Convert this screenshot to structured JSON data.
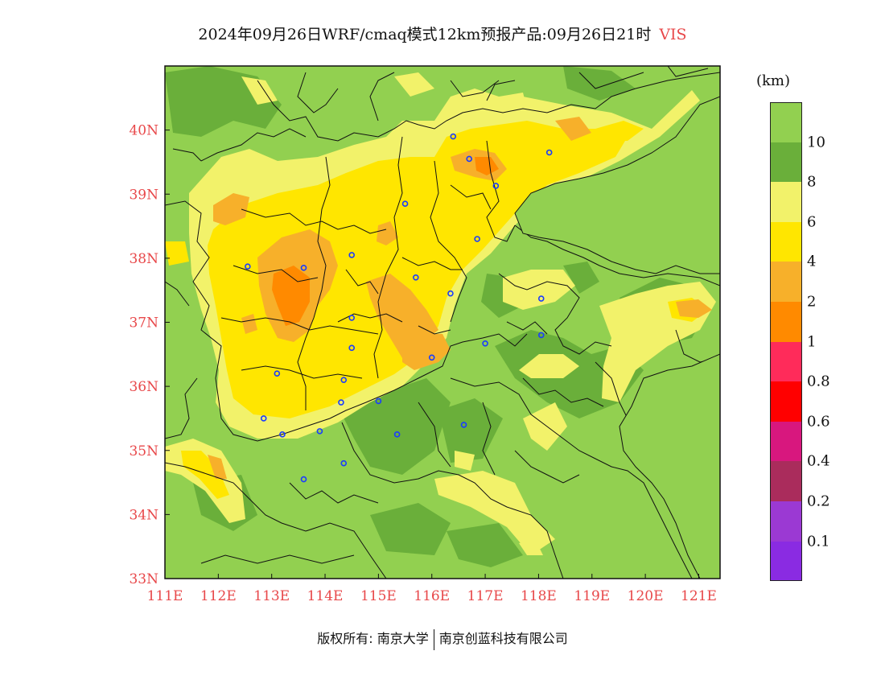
{
  "title": {
    "text": "2024年09月26日WRF/cmaq模式12km预报产品:09月26日21时",
    "variable": "VIS"
  },
  "map": {
    "lon_range": [
      111,
      121.4
    ],
    "lat_range": [
      33,
      41
    ],
    "lon_ticks": [
      "111E",
      "112E",
      "113E",
      "114E",
      "115E",
      "116E",
      "117E",
      "118E",
      "119E",
      "120E",
      "121E"
    ],
    "lat_ticks": [
      "33N",
      "34N",
      "35N",
      "36N",
      "37N",
      "38N",
      "39N",
      "40N"
    ],
    "colors": {
      "ge10": "#92d050",
      "8to10": "#6aaf3a",
      "6to8": "#f2f26a",
      "4to6": "#ffe600",
      "2to4": "#f7b02a",
      "1to2": "#ff8a00"
    },
    "city_markers": [
      [
        116.4,
        39.9
      ],
      [
        116.7,
        39.55
      ],
      [
        118.2,
        39.65
      ],
      [
        117.2,
        39.13
      ],
      [
        115.5,
        38.85
      ],
      [
        116.85,
        38.3
      ],
      [
        114.5,
        38.05
      ],
      [
        113.6,
        37.85
      ],
      [
        112.55,
        37.87
      ],
      [
        115.7,
        37.7
      ],
      [
        116.35,
        37.45
      ],
      [
        114.5,
        37.07
      ],
      [
        114.5,
        36.6
      ],
      [
        116.0,
        36.45
      ],
      [
        117.0,
        36.67
      ],
      [
        118.05,
        37.37
      ],
      [
        118.05,
        36.8
      ],
      [
        113.1,
        36.2
      ],
      [
        114.35,
        36.1
      ],
      [
        114.3,
        35.75
      ],
      [
        115.0,
        35.77
      ],
      [
        112.85,
        35.5
      ],
      [
        113.2,
        35.25
      ],
      [
        113.9,
        35.3
      ],
      [
        115.35,
        35.25
      ],
      [
        116.6,
        35.4
      ],
      [
        114.35,
        34.8
      ],
      [
        113.6,
        34.55
      ]
    ]
  },
  "legend": {
    "unit": "(km)",
    "colors": [
      "#92d050",
      "#6aaf3a",
      "#f2f26a",
      "#ffe600",
      "#f7b02a",
      "#ff8a00",
      "#ff2b5a",
      "#ff0000",
      "#d8177e",
      "#aa2c5c",
      "#9b39d3",
      "#8a2be2"
    ],
    "labels": [
      "10",
      "8",
      "6",
      "4",
      "2",
      "1",
      "0.8",
      "0.6",
      "0.4",
      "0.2",
      "0.1"
    ]
  },
  "footer": {
    "left": "版权所有: 南京大学",
    "right": "南京创蓝科技有限公司"
  }
}
